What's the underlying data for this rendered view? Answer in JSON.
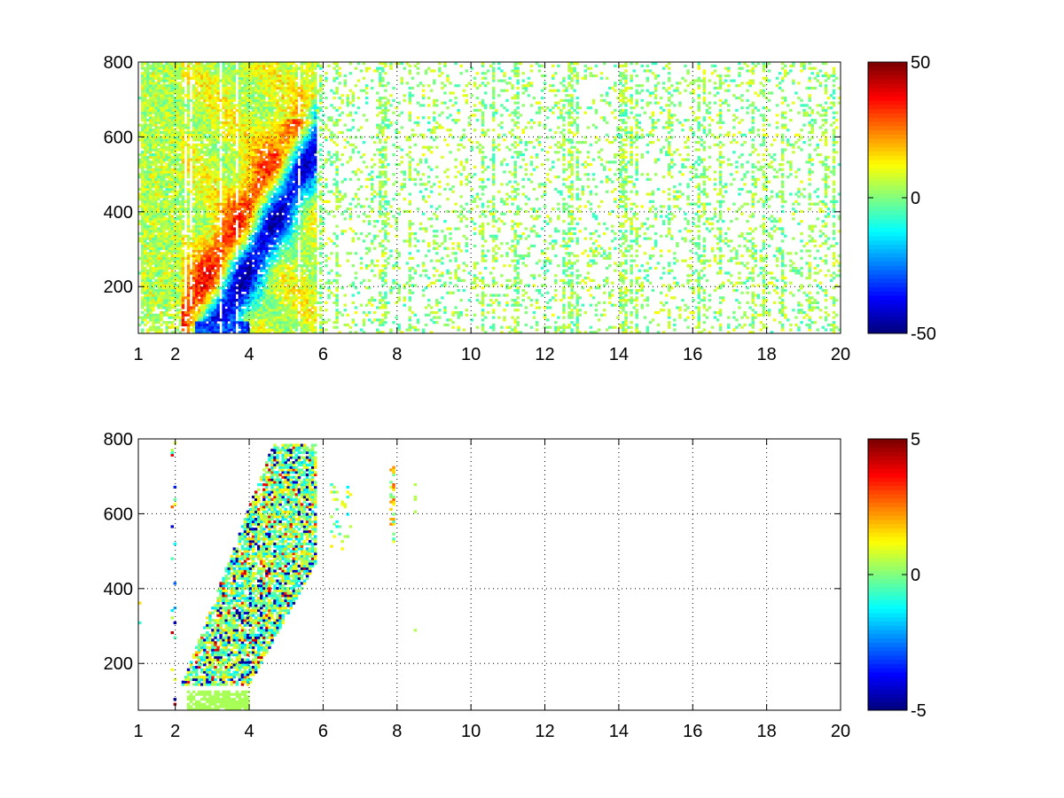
{
  "chart_data": [
    {
      "type": "heatmap",
      "title": "",
      "xlabel": "",
      "ylabel": "",
      "xlim": [
        1,
        20
      ],
      "ylim": [
        75,
        800
      ],
      "x_scale": "linear",
      "grid": true,
      "colormap": "jet",
      "x_ticks": [
        1,
        2,
        4,
        6,
        8,
        10,
        12,
        14,
        16,
        18,
        20
      ],
      "y_ticks": [
        200,
        400,
        600,
        800
      ],
      "colorbar": {
        "range": [
          -50,
          50
        ],
        "ticks": [
          -50,
          0,
          50
        ],
        "location": "right"
      },
      "structure": {
        "dense_region_x": [
          1,
          5.8
        ],
        "dense_region_y": [
          75,
          800
        ],
        "positive_band": "values around +20 to +40 extending from (2.5, 150) to (4.3, 450)",
        "negative_band": "values around -20 to -40 extending from (3.2, 150) to (5.3, 500)",
        "sparse_region_x": [
          5.8,
          20
        ],
        "sparse_values_range": [
          -8,
          12
        ]
      }
    },
    {
      "type": "heatmap",
      "title": "",
      "xlabel": "",
      "ylabel": "",
      "xlim": [
        1,
        20
      ],
      "ylim": [
        75,
        800
      ],
      "x_scale": "linear",
      "grid": true,
      "colormap": "jet",
      "x_ticks": [
        1,
        2,
        4,
        6,
        8,
        10,
        12,
        14,
        16,
        18,
        20
      ],
      "y_ticks": [
        200,
        400,
        600,
        800
      ],
      "colorbar": {
        "range": [
          -5,
          5
        ],
        "ticks": [
          -5,
          0,
          5
        ],
        "location": "right"
      },
      "structure": {
        "dense_region_x": [
          2.2,
          5.8
        ],
        "dense_region_y": [
          140,
          790
        ],
        "isolated_points_x": [
          1,
          2,
          6.5,
          7.9,
          8.5
        ],
        "values_range": [
          -5,
          5
        ]
      }
    }
  ]
}
